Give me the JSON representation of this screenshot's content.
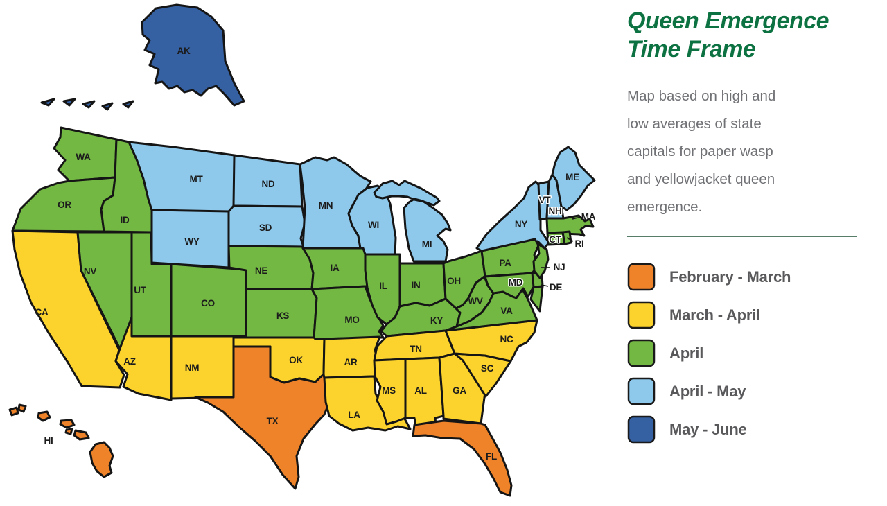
{
  "panel": {
    "title_line1": "Queen Emergence",
    "title_line2": "Time Frame",
    "description_lines": [
      "Map based on high and",
      "low averages of state",
      "capitals for paper wasp",
      "and yellowjacket queen",
      "emergence."
    ]
  },
  "legend": [
    {
      "id": "feb_mar",
      "label": "February - March",
      "color": "#ef8329"
    },
    {
      "id": "mar_apr",
      "label": "March - April",
      "color": "#fcd32c"
    },
    {
      "id": "apr",
      "label": "April",
      "color": "#74b844"
    },
    {
      "id": "apr_may",
      "label": "April - May",
      "color": "#8ec9ec"
    },
    {
      "id": "may_jun",
      "label": "May - June",
      "color": "#3560a2"
    }
  ],
  "map": {
    "border_color": "#151515",
    "label_color": "#1c1c1c",
    "states": [
      {
        "abbr": "WA",
        "timeframe": "apr"
      },
      {
        "abbr": "OR",
        "timeframe": "apr"
      },
      {
        "abbr": "CA",
        "timeframe": "mar_apr"
      },
      {
        "abbr": "ID",
        "timeframe": "apr"
      },
      {
        "abbr": "NV",
        "timeframe": "apr"
      },
      {
        "abbr": "UT",
        "timeframe": "apr"
      },
      {
        "abbr": "AZ",
        "timeframe": "mar_apr"
      },
      {
        "abbr": "MT",
        "timeframe": "apr_may"
      },
      {
        "abbr": "WY",
        "timeframe": "apr_may"
      },
      {
        "abbr": "CO",
        "timeframe": "apr"
      },
      {
        "abbr": "NM",
        "timeframe": "mar_apr"
      },
      {
        "abbr": "ND",
        "timeframe": "apr_may"
      },
      {
        "abbr": "SD",
        "timeframe": "apr_may"
      },
      {
        "abbr": "NE",
        "timeframe": "apr"
      },
      {
        "abbr": "KS",
        "timeframe": "apr"
      },
      {
        "abbr": "OK",
        "timeframe": "mar_apr"
      },
      {
        "abbr": "TX",
        "timeframe": "feb_mar"
      },
      {
        "abbr": "MN",
        "timeframe": "apr_may"
      },
      {
        "abbr": "IA",
        "timeframe": "apr"
      },
      {
        "abbr": "MO",
        "timeframe": "apr"
      },
      {
        "abbr": "AR",
        "timeframe": "mar_apr"
      },
      {
        "abbr": "LA",
        "timeframe": "mar_apr"
      },
      {
        "abbr": "WI",
        "timeframe": "apr_may"
      },
      {
        "abbr": "IL",
        "timeframe": "apr"
      },
      {
        "abbr": "IN",
        "timeframe": "apr"
      },
      {
        "abbr": "MI",
        "timeframe": "apr_may"
      },
      {
        "abbr": "OH",
        "timeframe": "apr"
      },
      {
        "abbr": "KY",
        "timeframe": "apr"
      },
      {
        "abbr": "TN",
        "timeframe": "mar_apr"
      },
      {
        "abbr": "MS",
        "timeframe": "mar_apr"
      },
      {
        "abbr": "AL",
        "timeframe": "mar_apr"
      },
      {
        "abbr": "GA",
        "timeframe": "mar_apr"
      },
      {
        "abbr": "SC",
        "timeframe": "mar_apr"
      },
      {
        "abbr": "NC",
        "timeframe": "mar_apr"
      },
      {
        "abbr": "VA",
        "timeframe": "apr"
      },
      {
        "abbr": "WV",
        "timeframe": "apr"
      },
      {
        "abbr": "FL",
        "timeframe": "feb_mar"
      },
      {
        "abbr": "PA",
        "timeframe": "apr"
      },
      {
        "abbr": "MD",
        "timeframe": "apr"
      },
      {
        "abbr": "DE",
        "timeframe": "apr"
      },
      {
        "abbr": "NJ",
        "timeframe": "apr"
      },
      {
        "abbr": "NY",
        "timeframe": "apr_may"
      },
      {
        "abbr": "VT",
        "timeframe": "apr_may"
      },
      {
        "abbr": "NH",
        "timeframe": "apr_may"
      },
      {
        "abbr": "ME",
        "timeframe": "apr_may"
      },
      {
        "abbr": "MA",
        "timeframe": "apr"
      },
      {
        "abbr": "CT",
        "timeframe": "apr"
      },
      {
        "abbr": "RI",
        "timeframe": "apr"
      },
      {
        "abbr": "AK",
        "timeframe": "may_jun"
      },
      {
        "abbr": "HI",
        "timeframe": "feb_mar"
      }
    ]
  }
}
